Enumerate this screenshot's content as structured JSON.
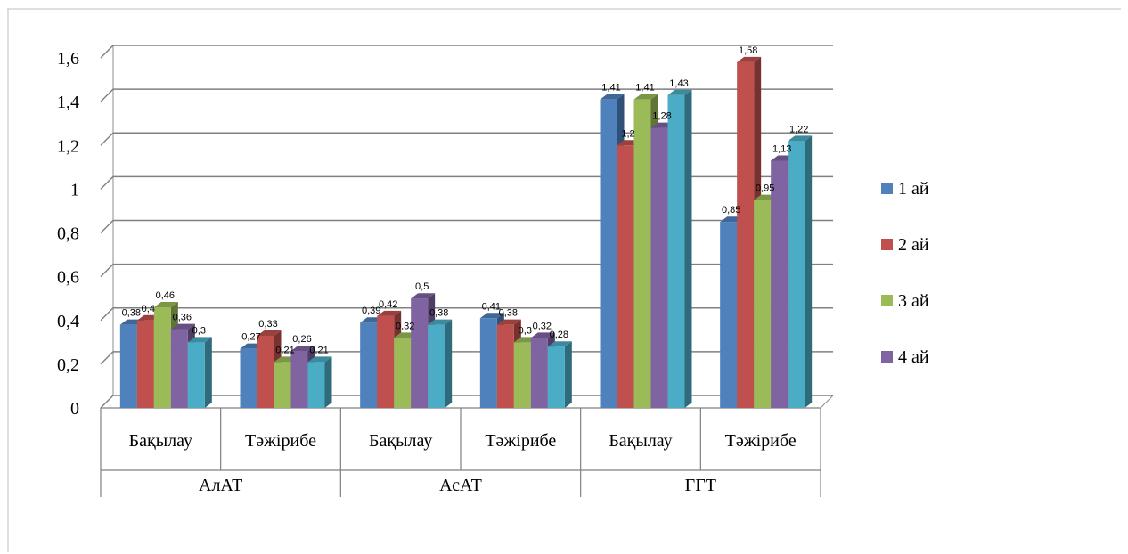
{
  "chart_data": {
    "type": "bar",
    "ylim": [
      0,
      1.6
    ],
    "yticks": [
      "0",
      "0,2",
      "0,4",
      "0,6",
      "0,8",
      "1",
      "1,2",
      "1,4",
      "1,6"
    ],
    "groups": [
      {
        "name": "АлАТ",
        "categories": [
          "Бақылау",
          "Тәжірибе"
        ]
      },
      {
        "name": "АсАТ",
        "categories": [
          "Бақылау",
          "Тәжірибе"
        ]
      },
      {
        "name": "ГГТ",
        "categories": [
          "Бақылау",
          "Тәжірибе"
        ]
      }
    ],
    "series": [
      {
        "name": "1 ай",
        "color": "#4F81BD",
        "values": [
          0.38,
          0.27,
          0.39,
          0.41,
          1.41,
          0.85
        ],
        "labels": [
          "0,38",
          "0,27",
          "0,39",
          "0,41",
          "1,41",
          "0,85"
        ]
      },
      {
        "name": "2 ай",
        "color": "#C0504D",
        "values": [
          0.4,
          0.33,
          0.42,
          0.38,
          1.2,
          1.58
        ],
        "labels": [
          "0,4",
          "0,33",
          "0,42",
          "0,38",
          "1,2",
          "1,58"
        ]
      },
      {
        "name": "3 ай",
        "color": "#9BBB59",
        "values": [
          0.46,
          0.21,
          0.32,
          0.3,
          1.41,
          0.95
        ],
        "labels": [
          "0,46",
          "0,21",
          "0,32",
          "0,3",
          "1,41",
          "0,95"
        ]
      },
      {
        "name": "4 ай",
        "color": "#8064A2",
        "values": [
          0.36,
          0.26,
          0.5,
          0.32,
          1.28,
          1.13
        ],
        "labels": [
          "0,36",
          "0,26",
          "0,5",
          "0,32",
          "1,28",
          "1,13"
        ]
      },
      {
        "name": "",
        "color": "#4BACC6",
        "values": [
          0.3,
          0.21,
          0.38,
          0.28,
          1.43,
          1.22
        ],
        "labels": [
          "0,3",
          "0,21",
          "0,38",
          "0,28",
          "1,43",
          "1,22"
        ]
      }
    ],
    "legend_position": "right",
    "grid": true
  }
}
